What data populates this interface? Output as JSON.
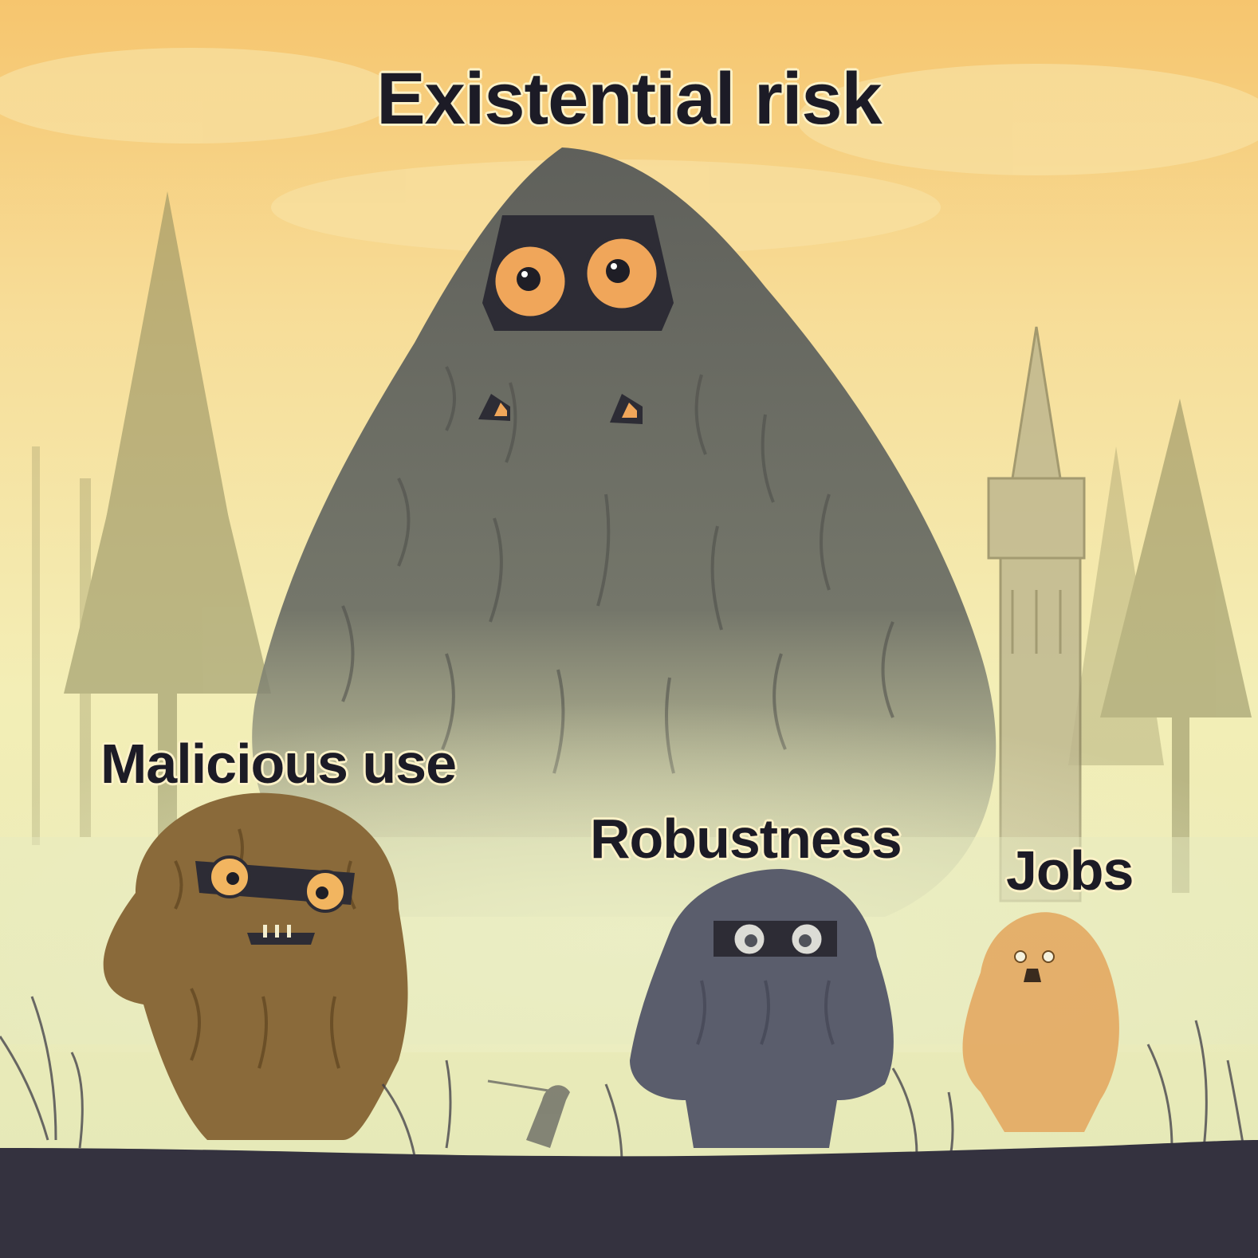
{
  "labels": {
    "title": "Existential risk",
    "malicious": "Malicious use",
    "robustness": "Robustness",
    "jobs": "Jobs"
  },
  "colors": {
    "sky_top": "#f6c56e",
    "sky_mid": "#f7e7a6",
    "fog": "#e6e9b9",
    "ground": "#34323f",
    "big_monster": "#6e6f66",
    "brown_monster": "#8a6a3a",
    "blue_monster": "#5a5d6c",
    "orange_monster": "#e3a55c",
    "eye_orange": "#f0a65a",
    "text": "#1c1b26"
  }
}
